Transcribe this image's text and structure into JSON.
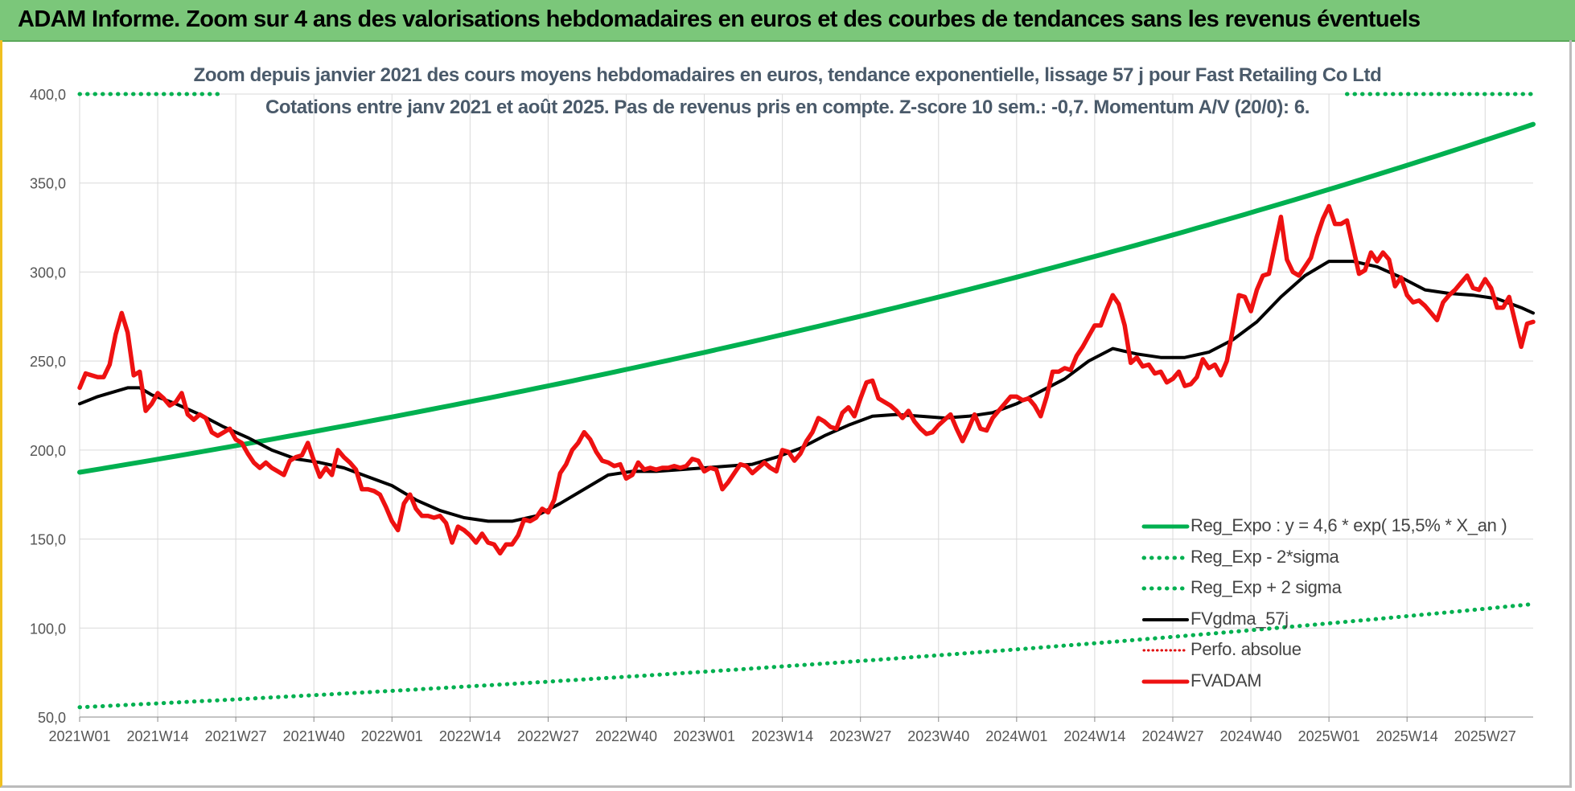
{
  "header": {
    "title": "ADAM Informe. Zoom sur 4 ans des valorisations hebdomadaires en euros et des courbes de tendances sans les revenus éventuels"
  },
  "colors": {
    "header_bg": "#7bc77a",
    "reg_expo": "#00b050",
    "sigma": "#00b050",
    "fvgdma": "#000000",
    "perfo": "#e00000",
    "fvadam": "#ee1111"
  },
  "chart_data": {
    "type": "line",
    "title_line1": "Zoom depuis janvier 2021 des cours moyens hebdomadaires en euros, tendance exponentielle, lissage 57 j pour Fast Retailing Co Ltd",
    "title_line2": "Cotations entre janv 2021 et août 2025.  Pas de revenus pris en compte. Z-score 10 sem.: -0,7. Momentum A/V (20/0): 6.",
    "ylim": [
      50,
      400
    ],
    "y_ticks": [
      "50,0",
      "100,0",
      "150,0",
      "200,0",
      "250,0",
      "300,0",
      "350,0",
      "400,0"
    ],
    "x_ticks": [
      "2021W01",
      "2021W14",
      "2021W27",
      "2021W40",
      "2022W01",
      "2022W14",
      "2022W27",
      "2022W40",
      "2023W01",
      "2023W14",
      "2023W27",
      "2023W40",
      "2024W01",
      "2024W14",
      "2024W27",
      "2024W40",
      "2025W01",
      "2025W14",
      "2025W27"
    ],
    "grid": true,
    "legend_position": "bottom-right",
    "series": [
      {
        "name": "Reg_Expo : y = 4,6 * exp( 15,5% *  X_an )",
        "style": "solid-green",
        "x": [
          0,
          242
        ],
        "values": [
          187.5,
          383
        ],
        "growth": "exponential"
      },
      {
        "name": "Reg_Exp - 2*sigma",
        "style": "dotted-green",
        "x": [
          0,
          242
        ],
        "values": [
          55.5,
          113.5
        ],
        "growth": "exponential"
      },
      {
        "name": "Reg_Exp + 2 sigma",
        "style": "dotted-green",
        "x": [
          0,
          24,
          211,
          242
        ],
        "values": [
          400,
          400,
          400,
          400
        ],
        "visible_segments": [
          [
            0,
            24
          ],
          [
            211,
            242
          ]
        ]
      },
      {
        "name": "FVgdma_57j",
        "style": "solid-black",
        "x": [
          0,
          3,
          6,
          8,
          10,
          12,
          16,
          20,
          24,
          28,
          32,
          36,
          40,
          44,
          48,
          52,
          56,
          60,
          64,
          68,
          72,
          76,
          80,
          84,
          88,
          92,
          96,
          100,
          104,
          108,
          112,
          116,
          120,
          124,
          128,
          132,
          136,
          140,
          144,
          148,
          152,
          156,
          160,
          164,
          168,
          172,
          176,
          180,
          184,
          188,
          192,
          196,
          200,
          204,
          208,
          212,
          216,
          220,
          224,
          228,
          232,
          236,
          240,
          242
        ],
        "values": [
          226,
          230,
          233,
          235,
          235,
          231,
          226,
          220,
          213,
          207,
          200,
          195,
          193,
          190,
          185,
          180,
          172,
          166,
          162,
          160,
          160,
          163,
          170,
          178,
          186,
          188,
          188,
          189,
          190,
          191,
          192,
          196,
          201,
          208,
          214,
          219,
          220,
          219,
          218,
          219,
          221,
          226,
          233,
          240,
          250,
          257,
          254,
          252,
          252,
          255,
          262,
          272,
          286,
          298,
          306,
          306,
          303,
          297,
          290,
          288,
          287,
          285,
          280,
          277
        ]
      },
      {
        "name": "Perfo. absolue",
        "style": "dotted-red",
        "x": [],
        "values": []
      },
      {
        "name": "FVADAM",
        "style": "solid-red",
        "x": [
          0,
          1,
          2,
          3,
          4,
          5,
          6,
          7,
          8,
          9,
          10,
          11,
          12,
          13,
          14,
          15,
          16,
          17,
          18,
          19,
          20,
          21,
          22,
          23,
          24,
          25,
          26,
          27,
          28,
          29,
          30,
          31,
          32,
          33,
          34,
          35,
          36,
          37,
          38,
          39,
          40,
          41,
          42,
          43,
          44,
          45,
          46,
          47,
          48,
          49,
          50,
          51,
          52,
          53,
          54,
          55,
          56,
          57,
          58,
          59,
          60,
          61,
          62,
          63,
          64,
          65,
          66,
          67,
          68,
          69,
          70,
          71,
          72,
          73,
          74,
          75,
          76,
          77,
          78,
          79,
          80,
          81,
          82,
          83,
          84,
          85,
          86,
          87,
          88,
          89,
          90,
          91,
          92,
          93,
          94,
          95,
          96,
          97,
          98,
          99,
          100,
          101,
          102,
          103,
          104,
          105,
          106,
          107,
          108,
          109,
          110,
          111,
          112,
          113,
          114,
          115,
          116,
          117,
          118,
          119,
          120,
          121,
          122,
          123,
          124,
          125,
          126,
          127,
          128,
          129,
          130,
          131,
          132,
          133,
          134,
          135,
          136,
          137,
          138,
          139,
          140,
          141,
          142,
          143,
          144,
          145,
          146,
          147,
          148,
          149,
          150,
          151,
          152,
          153,
          154,
          155,
          156,
          157,
          158,
          159,
          160,
          161,
          162,
          163,
          164,
          165,
          166,
          167,
          168,
          169,
          170,
          171,
          172,
          173,
          174,
          175,
          176,
          177,
          178,
          179,
          180,
          181,
          182,
          183,
          184,
          185,
          186,
          187,
          188,
          189,
          190,
          191,
          192,
          193,
          194,
          195,
          196,
          197,
          198,
          199,
          200,
          201,
          202,
          203,
          204,
          205,
          206,
          207,
          208,
          209,
          210,
          211,
          212,
          213,
          214,
          215,
          216,
          217,
          218,
          219,
          220,
          221,
          222,
          223,
          224,
          225,
          226,
          227,
          228,
          229,
          230,
          231,
          232,
          233,
          234,
          235,
          236,
          237,
          238,
          239,
          240,
          241,
          242
        ],
        "values": [
          235,
          243,
          242,
          241,
          241,
          248,
          265,
          277,
          266,
          242,
          244,
          222,
          226,
          232,
          229,
          225,
          227,
          232,
          220,
          217,
          220,
          218,
          210,
          208,
          210,
          212,
          206,
          204,
          198,
          193,
          190,
          193,
          190,
          188,
          186,
          194,
          196,
          197,
          204,
          194,
          185,
          190,
          186,
          200,
          196,
          193,
          189,
          178,
          178,
          177,
          175,
          168,
          160,
          155,
          170,
          175,
          167,
          163,
          163,
          162,
          163,
          159,
          148,
          157,
          155,
          152,
          148,
          153,
          148,
          147,
          142,
          147,
          147,
          152,
          161,
          160,
          162,
          167,
          165,
          172,
          187,
          192,
          200,
          204,
          210,
          206,
          199,
          194,
          193,
          191,
          192,
          184,
          186,
          193,
          189,
          190,
          189,
          190,
          190,
          191,
          190,
          191,
          195,
          194,
          188,
          190,
          189,
          178,
          182,
          187,
          192,
          191,
          187,
          190,
          193,
          190,
          188,
          200,
          199,
          194,
          198,
          205,
          210,
          218,
          216,
          213,
          212,
          221,
          224,
          219,
          229,
          238,
          239,
          229,
          227,
          225,
          222,
          218,
          222,
          216,
          212,
          209,
          210,
          214,
          217,
          220,
          212,
          205,
          212,
          220,
          212,
          211,
          218,
          222,
          226,
          230,
          230,
          228,
          229,
          225,
          219,
          230,
          244,
          244,
          246,
          245,
          253,
          258,
          264,
          270,
          270,
          279,
          287,
          282,
          270,
          249,
          252,
          247,
          248,
          243,
          244,
          238,
          240,
          244,
          236,
          237,
          241,
          251,
          246,
          248,
          242,
          250,
          268,
          287,
          286,
          278,
          290,
          298,
          299,
          315,
          331,
          307,
          300,
          298,
          303,
          308,
          320,
          330,
          337,
          327,
          327,
          329,
          314,
          299,
          301,
          311,
          306,
          311,
          307,
          292,
          297,
          287,
          283,
          284,
          281,
          277,
          273,
          283,
          287,
          290,
          294,
          298,
          291,
          290,
          296,
          291,
          280,
          280,
          286,
          272,
          258,
          271,
          272
        ]
      }
    ]
  }
}
